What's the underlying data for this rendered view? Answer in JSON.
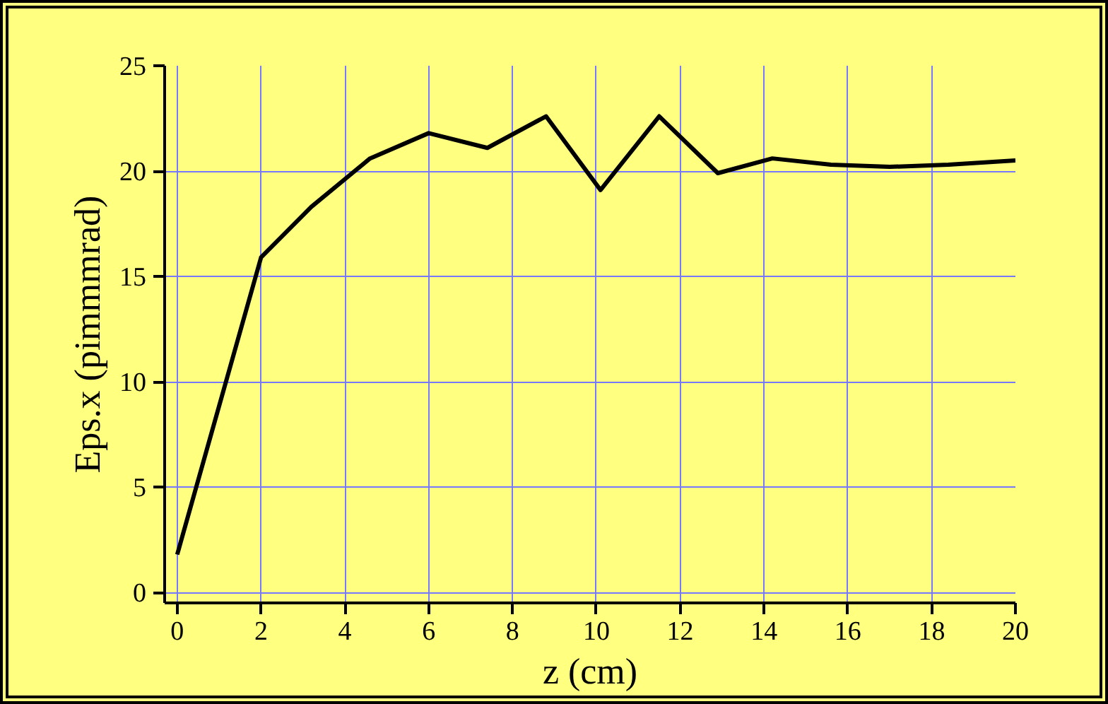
{
  "chart_data": {
    "type": "line",
    "xlabel": "z (cm)",
    "ylabel": "Eps.x (pimmmrad)",
    "x": [
      0,
      2,
      3.2,
      4.6,
      6,
      7.4,
      8.8,
      10.1,
      11.5,
      12.9,
      14.2,
      15.6,
      17,
      18.4,
      20
    ],
    "series": [
      {
        "color": "#000000",
        "values": [
          1.8,
          15.9,
          18.3,
          20.6,
          21.8,
          21.1,
          22.6,
          19.1,
          22.6,
          19.9,
          20.6,
          20.3,
          20.2,
          20.3,
          20.5
        ]
      }
    ],
    "xlim": [
      -0.3,
      20
    ],
    "ylim": [
      -0.5,
      25
    ],
    "xticks": [
      0,
      2,
      4,
      6,
      8,
      10,
      12,
      14,
      16,
      18,
      20
    ],
    "yticks": [
      0,
      5,
      10,
      15,
      20,
      25
    ],
    "grid": true,
    "marker": "none",
    "line_style": "solid"
  }
}
